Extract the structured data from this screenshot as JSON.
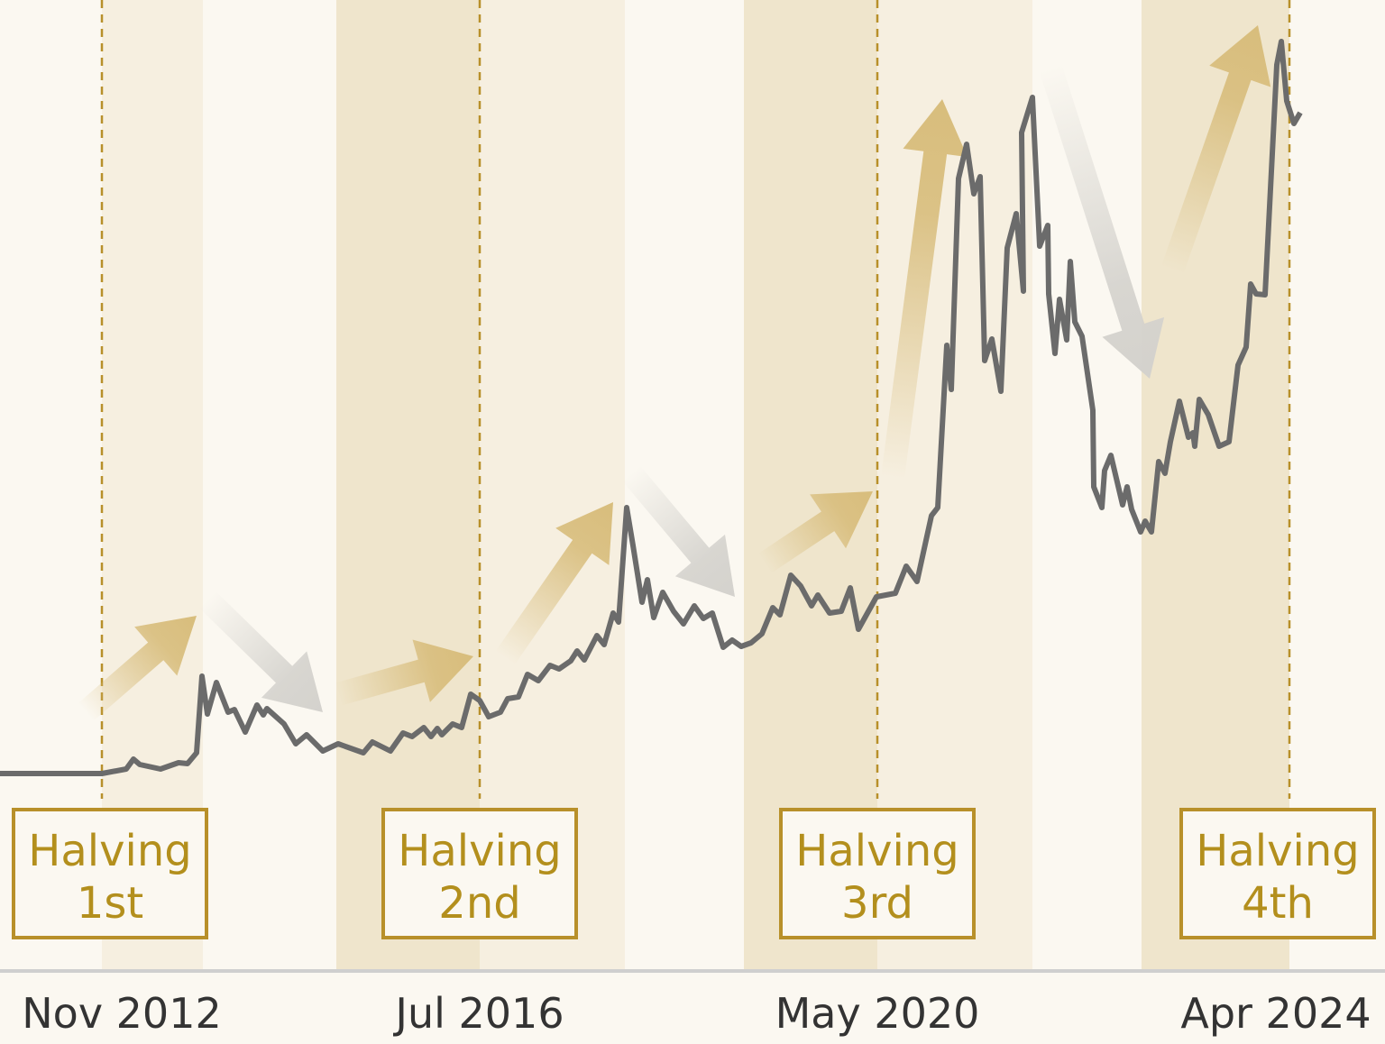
{
  "halvings": [
    {
      "title": "Halving",
      "ordinal": "1st",
      "date": "Nov 2012"
    },
    {
      "title": "Halving",
      "ordinal": "2nd",
      "date": "Jul 2016"
    },
    {
      "title": "Halving",
      "ordinal": "3rd",
      "date": "May 2020"
    },
    {
      "title": "Halving",
      "ordinal": "4th",
      "date": "Apr 2024"
    }
  ]
}
